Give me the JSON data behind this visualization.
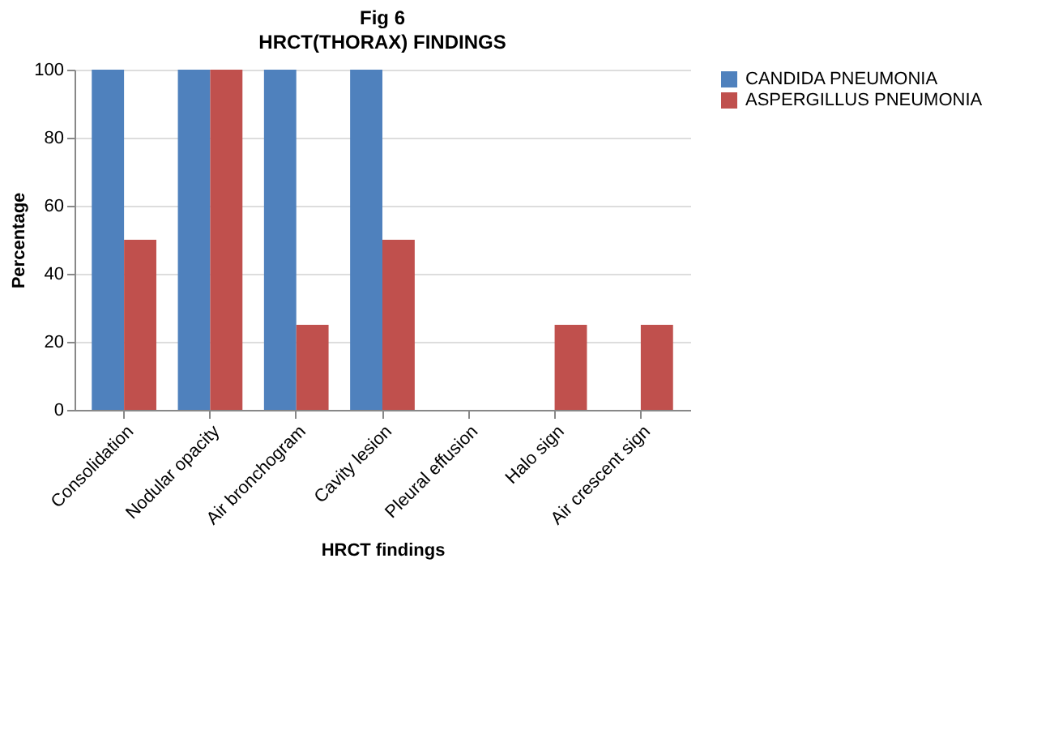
{
  "chart_data": {
    "type": "bar",
    "title": "Fig 6",
    "subtitle": "HRCT(THORAX)  FINDINGS",
    "xlabel": "HRCT findings",
    "ylabel": "Percentage",
    "categories": [
      "Consolidation",
      "Nodular opacity",
      "Air bronchogram",
      "Cavity lesion",
      "Pleural effusion",
      "Halo sign",
      "Air crescent sign"
    ],
    "series": [
      {
        "name": "CANDIDA PNEUMONIA",
        "color": "#4f81bd",
        "values": [
          100,
          100,
          100,
          100,
          0,
          0,
          0
        ]
      },
      {
        "name": "ASPERGILLUS PNEUMONIA",
        "color": "#c0504d",
        "values": [
          50,
          100,
          25,
          50,
          0,
          25,
          25
        ]
      }
    ],
    "ylim": [
      0,
      100
    ],
    "yticks": [
      0,
      20,
      40,
      60,
      80,
      100
    ],
    "grid": "y",
    "legend": "right"
  }
}
